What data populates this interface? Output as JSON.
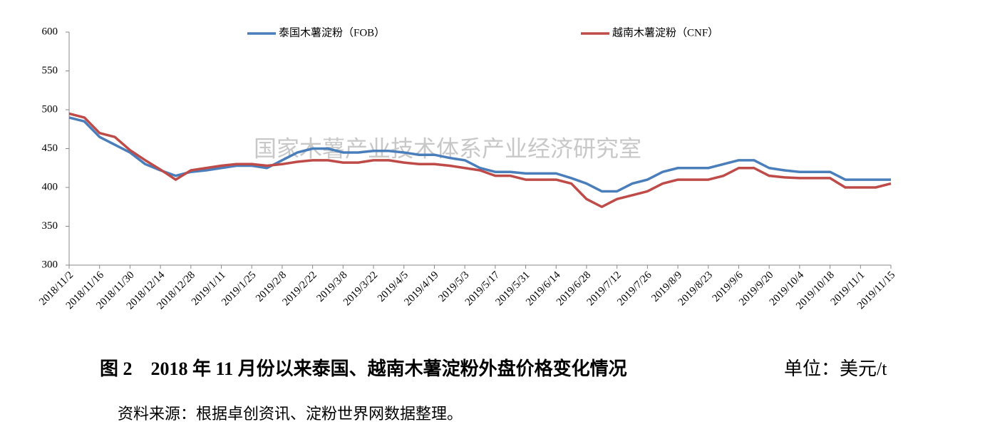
{
  "chart_data": {
    "type": "line",
    "categories": [
      "2018/11/2",
      null,
      "2018/11/16",
      null,
      "2018/11/30",
      null,
      "2018/12/14",
      null,
      "2018/12/28",
      null,
      "2019/1/11",
      null,
      "2019/1/25",
      null,
      "2019/2/8",
      null,
      "2019/2/22",
      null,
      "2019/3/8",
      null,
      "2019/3/22",
      null,
      "2019/4/5",
      null,
      "2019/4/19",
      null,
      "2019/5/3",
      null,
      "2019/5/17",
      null,
      "2019/5/31",
      null,
      "2019/6/14",
      null,
      "2019/6/28",
      null,
      "2019/7/12",
      null,
      "2019/7/26",
      null,
      "2019/8/9",
      null,
      "2019/8/23",
      null,
      "2019/9/6",
      null,
      "2019/9/20",
      null,
      "2019/10/4",
      null,
      "2019/10/18",
      null,
      "2019/11/1",
      null,
      "2019/11/15"
    ],
    "series": [
      {
        "name": "泰国木薯淀粉（FOB）",
        "color": "#4a7ebb",
        "values": [
          490,
          485,
          465,
          455,
          445,
          430,
          422,
          415,
          420,
          422,
          425,
          428,
          428,
          425,
          435,
          445,
          450,
          450,
          445,
          445,
          447,
          447,
          445,
          442,
          442,
          438,
          435,
          425,
          420,
          420,
          418,
          418,
          418,
          412,
          405,
          395,
          395,
          405,
          410,
          420,
          425,
          425,
          425,
          430,
          435,
          435,
          425,
          422,
          420,
          420,
          420,
          410,
          410,
          410,
          410
        ]
      },
      {
        "name": "越南木薯淀粉（CNF）",
        "color": "#be4b48",
        "values": [
          495,
          490,
          470,
          465,
          448,
          435,
          423,
          410,
          422,
          425,
          428,
          430,
          430,
          428,
          430,
          433,
          435,
          435,
          432,
          432,
          435,
          435,
          432,
          430,
          430,
          428,
          425,
          422,
          415,
          415,
          410,
          410,
          410,
          405,
          385,
          375,
          385,
          390,
          395,
          405,
          410,
          410,
          410,
          415,
          425,
          425,
          415,
          413,
          412,
          412,
          412,
          400,
          400,
          400,
          405
        ]
      }
    ],
    "ylim": [
      300,
      600
    ],
    "yticks": [
      300,
      350,
      400,
      450,
      500,
      550,
      600
    ],
    "grid": false,
    "legend": "top",
    "watermark": "国家木薯产业技术体系产业经济研究室",
    "caption": "图 2　2018 年 11 月份以来泰国、越南木薯淀粉外盘价格变化情况",
    "unit": "单位：美元/t",
    "source": "资料来源：根据卓创资讯、淀粉世界网数据整理。"
  }
}
